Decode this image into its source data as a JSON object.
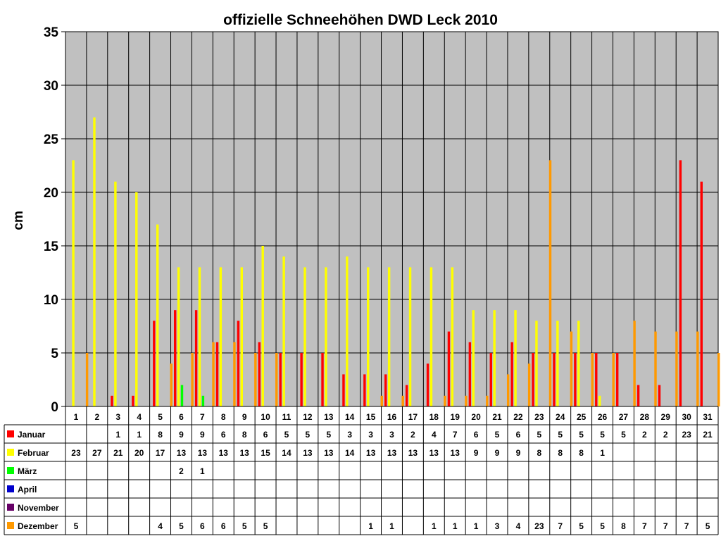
{
  "chart_data": {
    "type": "bar",
    "title": "offizielle Schneehöhen DWD Leck 2010",
    "ylabel": "cm",
    "xlabel": "",
    "ylim": [
      0,
      35
    ],
    "yticks": [
      0,
      5,
      10,
      15,
      20,
      25,
      30,
      35
    ],
    "grid": true,
    "plot_background": "#C0C0C0",
    "legend_position": "data-table-left",
    "categories": [
      "1",
      "2",
      "3",
      "4",
      "5",
      "6",
      "7",
      "8",
      "9",
      "10",
      "11",
      "12",
      "13",
      "14",
      "15",
      "16",
      "17",
      "18",
      "19",
      "20",
      "21",
      "22",
      "23",
      "24",
      "25",
      "26",
      "27",
      "28",
      "29",
      "30",
      "31"
    ],
    "series": [
      {
        "name": "Januar",
        "color": "#FF0000",
        "values": [
          null,
          null,
          1,
          1,
          8,
          9,
          9,
          6,
          8,
          6,
          5,
          5,
          5,
          3,
          3,
          3,
          2,
          4,
          7,
          6,
          5,
          6,
          5,
          5,
          5,
          5,
          5,
          2,
          2,
          23,
          21
        ]
      },
      {
        "name": "Februar",
        "color": "#FFFF00",
        "values": [
          23,
          27,
          21,
          20,
          17,
          13,
          13,
          13,
          13,
          15,
          14,
          13,
          13,
          14,
          13,
          13,
          13,
          13,
          13,
          9,
          9,
          9,
          8,
          8,
          8,
          1,
          null,
          null,
          null,
          null,
          null
        ]
      },
      {
        "name": "März",
        "color": "#00FF00",
        "values": [
          null,
          null,
          null,
          null,
          null,
          2,
          1,
          null,
          null,
          null,
          null,
          null,
          null,
          null,
          null,
          null,
          null,
          null,
          null,
          null,
          null,
          null,
          null,
          null,
          null,
          null,
          null,
          null,
          null,
          null,
          null
        ]
      },
      {
        "name": "April",
        "color": "#0000CC",
        "values": [
          null,
          null,
          null,
          null,
          null,
          null,
          null,
          null,
          null,
          null,
          null,
          null,
          null,
          null,
          null,
          null,
          null,
          null,
          null,
          null,
          null,
          null,
          null,
          null,
          null,
          null,
          null,
          null,
          null,
          null,
          null
        ]
      },
      {
        "name": "November",
        "color": "#660066",
        "values": [
          null,
          null,
          null,
          null,
          null,
          null,
          null,
          null,
          null,
          null,
          null,
          null,
          null,
          null,
          null,
          null,
          null,
          null,
          null,
          null,
          null,
          null,
          null,
          null,
          null,
          null,
          null,
          null,
          null,
          null,
          null
        ]
      },
      {
        "name": "Dezember",
        "color": "#FF9900",
        "values": [
          5,
          null,
          null,
          null,
          4,
          5,
          6,
          6,
          5,
          5,
          null,
          null,
          null,
          null,
          1,
          1,
          null,
          1,
          1,
          1,
          3,
          4,
          23,
          7,
          5,
          5,
          8,
          7,
          7,
          7,
          5
        ]
      }
    ]
  }
}
